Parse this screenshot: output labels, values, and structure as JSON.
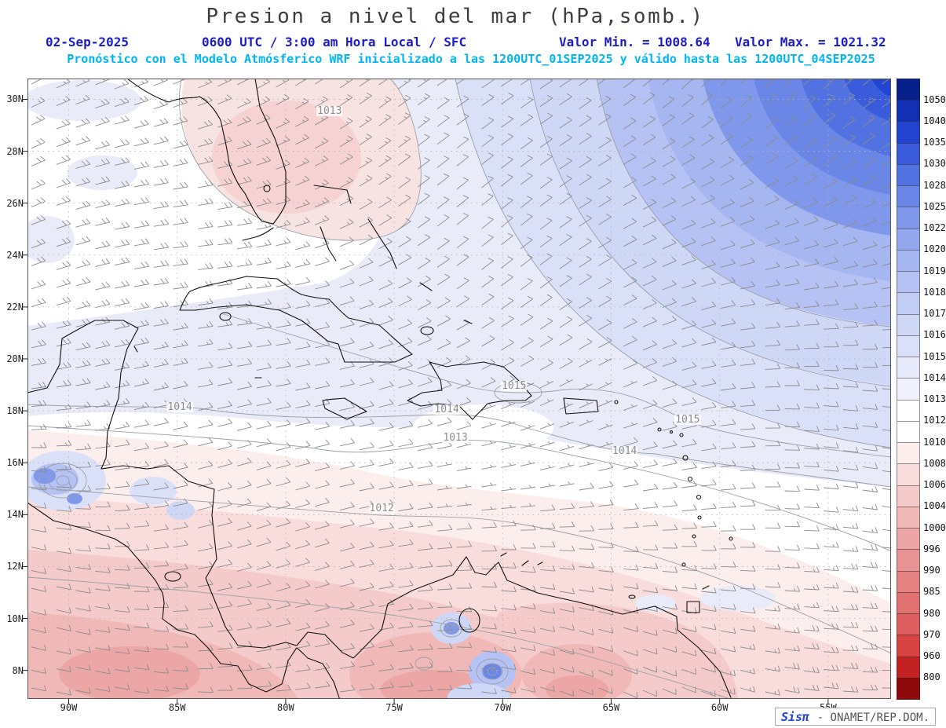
{
  "header": {
    "title": "Presion a nivel del mar (hPa,somb.)",
    "date": "02-Sep-2025",
    "time_info": "0600 UTC / 3:00 am Hora Local / SFC",
    "min_label": "Valor Min. = 1008.64",
    "max_label": "Valor Max. = 1021.32",
    "forecast": "Pronóstico con el Modelo Atmósferico WRF inicializado a las 1200UTC_01SEP2025 y válido hasta las  1200UTC_04SEP2025"
  },
  "map": {
    "lat_labels": [
      "30N",
      "28N",
      "26N",
      "24N",
      "22N",
      "20N",
      "18N",
      "16N",
      "14N",
      "12N",
      "10N",
      "8N"
    ],
    "lon_labels": [
      "90W",
      "85W",
      "80W",
      "75W",
      "70W",
      "65W",
      "60W",
      "55W"
    ],
    "extent": {
      "lon_min": -91.9,
      "lon_max": -52.1,
      "lat_min": 6.9,
      "lat_max": 30.8
    },
    "contour_labels": [
      {
        "text": "1013",
        "lon": -78.0,
        "lat": 29.5
      },
      {
        "text": "1014",
        "lon": -84.9,
        "lat": 18.1
      },
      {
        "text": "1014",
        "lon": -72.6,
        "lat": 18.0
      },
      {
        "text": "1015",
        "lon": -69.5,
        "lat": 18.9
      },
      {
        "text": "1013",
        "lon": -72.2,
        "lat": 16.9
      },
      {
        "text": "1014",
        "lon": -64.4,
        "lat": 16.4
      },
      {
        "text": "1015",
        "lon": -61.5,
        "lat": 17.6
      },
      {
        "text": "1012",
        "lon": -75.6,
        "lat": 14.2
      }
    ]
  },
  "colorbar": {
    "values": [
      1050,
      1040,
      1035,
      1030,
      1028,
      1025,
      1022,
      1020,
      1019,
      1018,
      1017,
      1016,
      1015,
      1014,
      1013,
      1012,
      1010,
      1008,
      1006,
      1004,
      1000,
      996,
      990,
      985,
      980,
      970,
      960,
      800
    ],
    "colors": [
      "#08218a",
      "#1330b4",
      "#2244d0",
      "#3a5bdb",
      "#5272e2",
      "#6a87e8",
      "#8098ec",
      "#94a8ef",
      "#a6b6f1",
      "#b5c2f3",
      "#c2cdf5",
      "#cfd7f7",
      "#dbe0f9",
      "#e6e9fa",
      "#f0f1fc",
      "#ffffff",
      "#ffffff",
      "#fdeeee",
      "#f9dcdc",
      "#f5caca",
      "#f1b8b8",
      "#eda6a6",
      "#e99494",
      "#e58282",
      "#e17070",
      "#dd5e5e",
      "#d84444",
      "#c42222",
      "#8f0a0a"
    ]
  },
  "watermark": {
    "brand": "Sisπ",
    "text": "- ONAMET/REP.DOM."
  }
}
